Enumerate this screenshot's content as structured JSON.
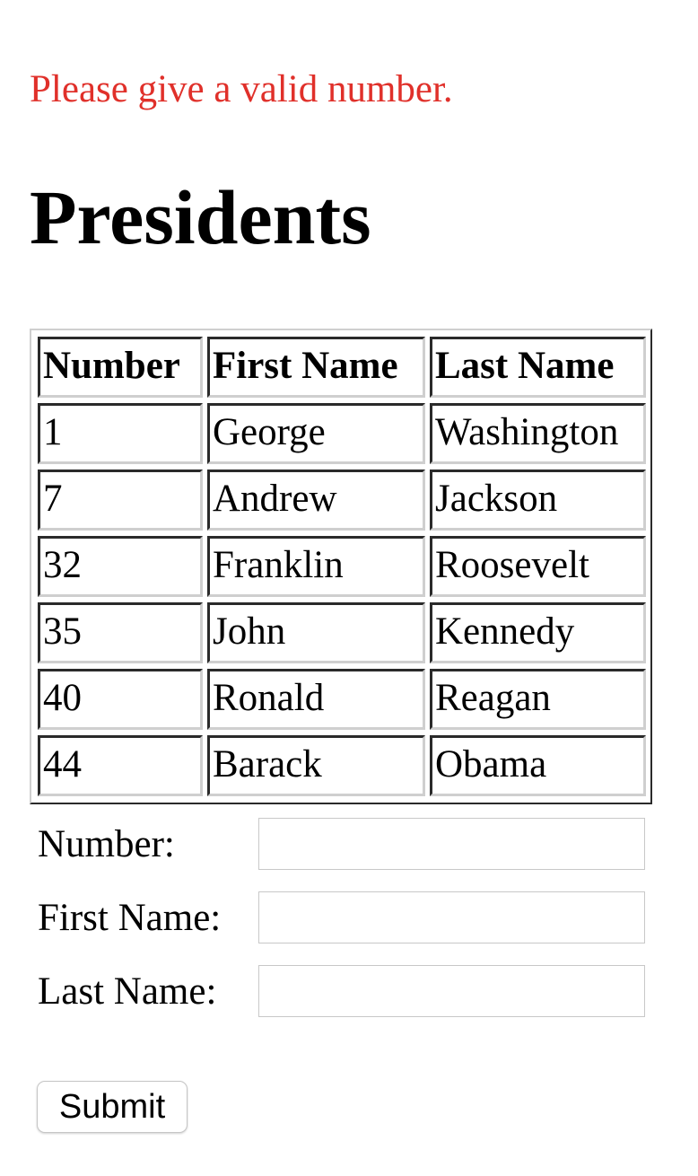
{
  "error_message": "Please give a valid number.",
  "page_title": "Presidents",
  "colors": {
    "error": "#e0302a"
  },
  "table": {
    "headers": [
      "Number",
      "First Name",
      "Last Name"
    ],
    "rows": [
      [
        "1",
        "George",
        "Washington"
      ],
      [
        "7",
        "Andrew",
        "Jackson"
      ],
      [
        "32",
        "Franklin",
        "Roosevelt"
      ],
      [
        "35",
        "John",
        "Kennedy"
      ],
      [
        "40",
        "Ronald",
        "Reagan"
      ],
      [
        "44",
        "Barack",
        "Obama"
      ]
    ]
  },
  "form": {
    "number_label": "Number:",
    "number_value": "",
    "first_name_label": "First Name:",
    "first_name_value": "",
    "last_name_label": "Last Name:",
    "last_name_value": "",
    "submit_label": "Submit"
  }
}
